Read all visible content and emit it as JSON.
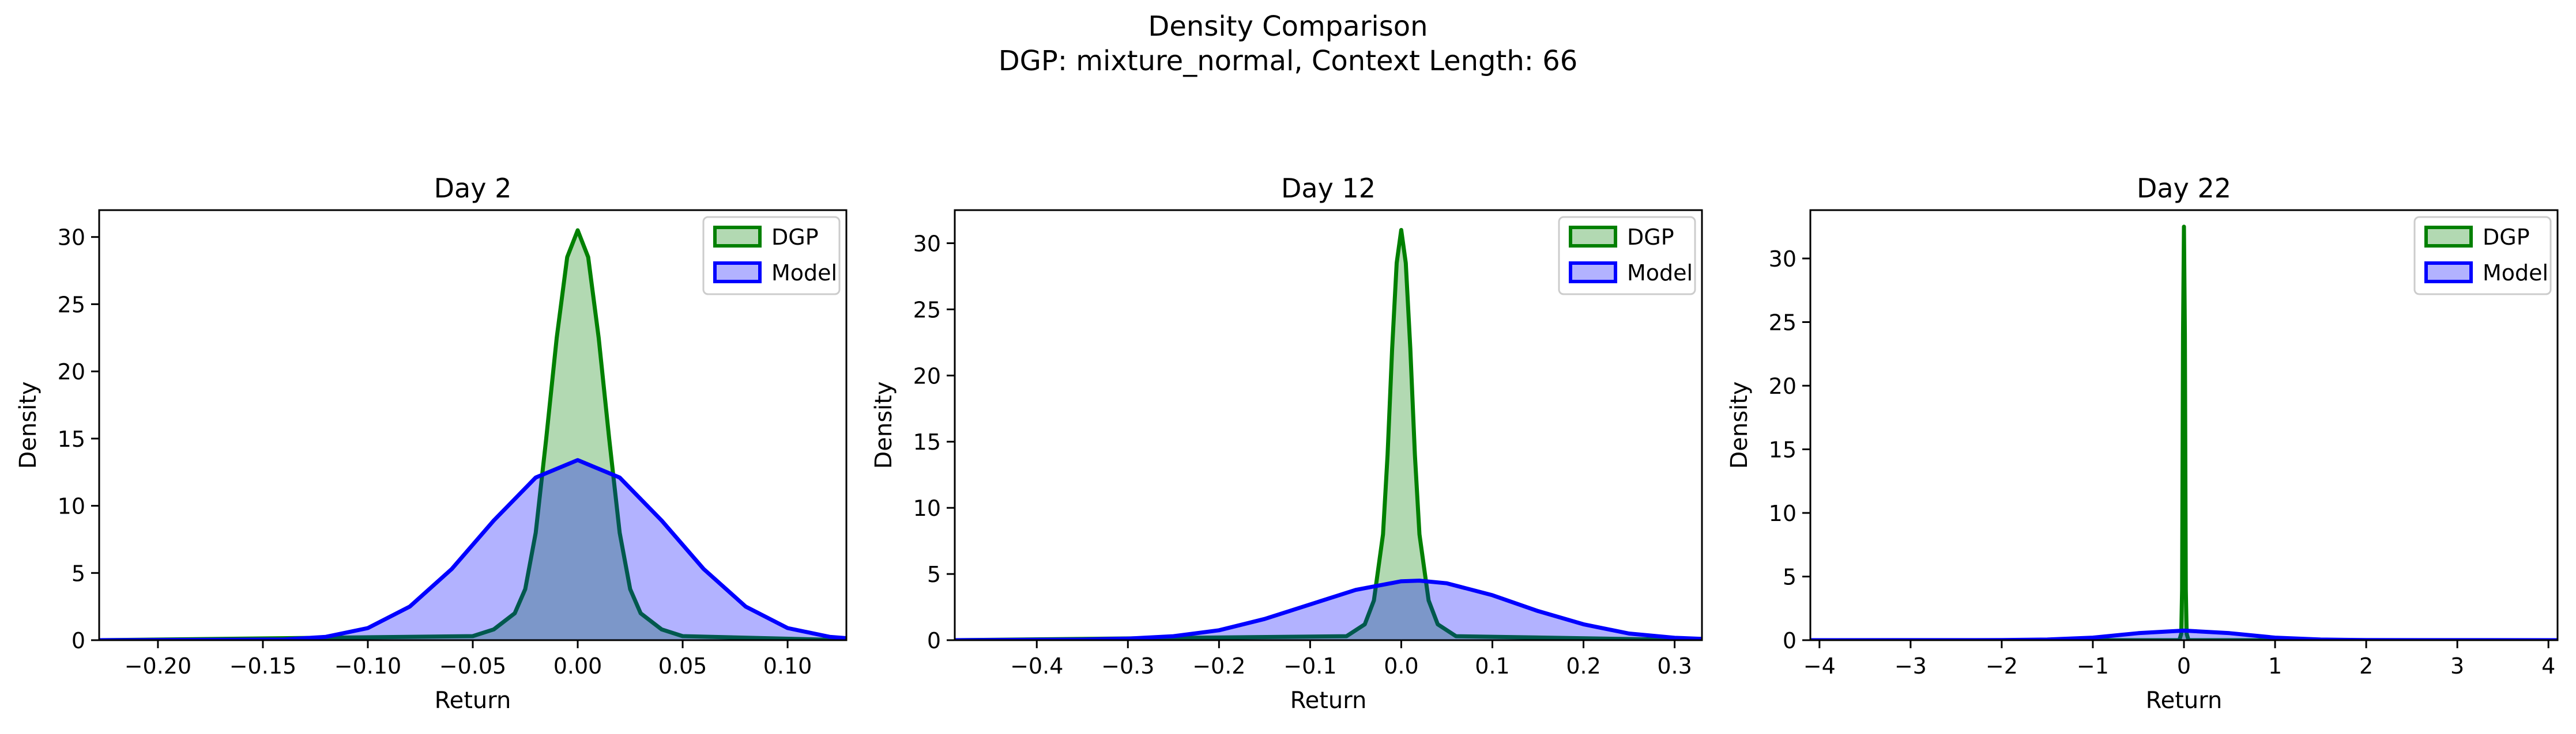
{
  "figure": {
    "title_line1": "Density Comparison",
    "title_line2": "DGP: mixture_normal, Context Length: 66"
  },
  "colors": {
    "dgp": "#008000",
    "model": "#0000ff",
    "dgp_fill": "rgba(0,128,0,0.3)",
    "model_fill": "rgba(0,0,255,0.3)"
  },
  "chart_data": [
    {
      "type": "area",
      "title": "Day 2",
      "xlabel": "Return",
      "ylabel": "Density",
      "xlim": [
        -0.228,
        0.128
      ],
      "ylim": [
        0,
        32
      ],
      "xticks": [
        -0.2,
        -0.15,
        -0.1,
        -0.05,
        0.0,
        0.05,
        0.1
      ],
      "xtick_labels": [
        "−0.20",
        "−0.15",
        "−0.10",
        "−0.05",
        "0.00",
        "0.05",
        "0.10"
      ],
      "yticks": [
        0,
        5,
        10,
        15,
        20,
        25,
        30
      ],
      "ytick_labels": [
        "0",
        "5",
        "10",
        "15",
        "20",
        "25",
        "30"
      ],
      "legend_position": "top-right",
      "series": [
        {
          "name": "DGP",
          "color": "#008000",
          "x": [
            -0.228,
            -0.05,
            -0.04,
            -0.03,
            -0.025,
            -0.02,
            -0.015,
            -0.01,
            -0.005,
            0.0,
            0.005,
            0.01,
            0.015,
            0.02,
            0.025,
            0.03,
            0.04,
            0.05,
            0.128
          ],
          "y": [
            0.0,
            0.3,
            0.8,
            2.0,
            3.8,
            8.0,
            15.0,
            22.5,
            28.5,
            30.5,
            28.5,
            22.5,
            15.0,
            8.0,
            3.8,
            2.0,
            0.8,
            0.3,
            0.0
          ]
        },
        {
          "name": "Model",
          "color": "#0000ff",
          "x": [
            -0.228,
            -0.14,
            -0.12,
            -0.1,
            -0.08,
            -0.06,
            -0.04,
            -0.02,
            0.0,
            0.02,
            0.04,
            0.06,
            0.08,
            0.1,
            0.12,
            0.128
          ],
          "y": [
            0.0,
            0.05,
            0.25,
            0.9,
            2.5,
            5.3,
            8.9,
            12.1,
            13.4,
            12.1,
            8.9,
            5.3,
            2.5,
            0.9,
            0.25,
            0.15
          ]
        }
      ]
    },
    {
      "type": "area",
      "title": "Day 12",
      "xlabel": "Return",
      "ylabel": "Density",
      "xlim": [
        -0.49,
        0.33
      ],
      "ylim": [
        0,
        32.5
      ],
      "xticks": [
        -0.4,
        -0.3,
        -0.2,
        -0.1,
        0.0,
        0.1,
        0.2,
        0.3
      ],
      "xtick_labels": [
        "−0.4",
        "−0.3",
        "−0.2",
        "−0.1",
        "0.0",
        "0.1",
        "0.2",
        "0.3"
      ],
      "yticks": [
        0,
        5,
        10,
        15,
        20,
        25,
        30
      ],
      "ytick_labels": [
        "0",
        "5",
        "10",
        "15",
        "20",
        "25",
        "30"
      ],
      "legend_position": "top-right",
      "series": [
        {
          "name": "DGP",
          "color": "#008000",
          "x": [
            -0.49,
            -0.06,
            -0.04,
            -0.03,
            -0.02,
            -0.015,
            -0.01,
            -0.005,
            0.0,
            0.005,
            0.01,
            0.015,
            0.02,
            0.03,
            0.04,
            0.06,
            0.33
          ],
          "y": [
            0.0,
            0.3,
            1.2,
            3.0,
            8.0,
            14.0,
            22.0,
            28.5,
            31.0,
            28.5,
            22.0,
            14.0,
            8.0,
            3.0,
            1.2,
            0.3,
            0.0
          ]
        },
        {
          "name": "Model",
          "color": "#0000ff",
          "x": [
            -0.49,
            -0.35,
            -0.3,
            -0.25,
            -0.2,
            -0.15,
            -0.1,
            -0.05,
            0.0,
            0.02,
            0.05,
            0.1,
            0.15,
            0.2,
            0.25,
            0.3,
            0.33
          ],
          "y": [
            0.0,
            0.05,
            0.12,
            0.3,
            0.75,
            1.6,
            2.7,
            3.8,
            4.45,
            4.5,
            4.3,
            3.4,
            2.2,
            1.2,
            0.5,
            0.18,
            0.1
          ]
        }
      ]
    },
    {
      "type": "area",
      "title": "Day 22",
      "xlabel": "Return",
      "ylabel": "Density",
      "xlim": [
        -4.1,
        4.1
      ],
      "ylim": [
        0,
        33.8
      ],
      "xticks": [
        -4,
        -3,
        -2,
        -1,
        0,
        1,
        2,
        3,
        4
      ],
      "xtick_labels": [
        "−4",
        "−3",
        "−2",
        "−1",
        "0",
        "1",
        "2",
        "3",
        "4"
      ],
      "yticks": [
        0,
        5,
        10,
        15,
        20,
        25,
        30
      ],
      "ytick_labels": [
        "0",
        "5",
        "10",
        "15",
        "20",
        "25",
        "30"
      ],
      "legend_position": "top-right",
      "series": [
        {
          "name": "DGP",
          "color": "#008000",
          "x": [
            -4.1,
            -0.05,
            -0.03,
            -0.02,
            -0.01,
            0.0,
            0.01,
            0.02,
            0.03,
            0.05,
            4.1
          ],
          "y": [
            0.0,
            0.0,
            0.5,
            4.0,
            24.0,
            32.5,
            24.0,
            4.0,
            0.5,
            0.0,
            0.0
          ]
        },
        {
          "name": "Model",
          "color": "#0000ff",
          "x": [
            -4.1,
            -2.0,
            -1.5,
            -1.0,
            -0.5,
            0.0,
            0.5,
            1.0,
            1.5,
            2.0,
            4.1
          ],
          "y": [
            0.0,
            0.01,
            0.05,
            0.2,
            0.55,
            0.75,
            0.55,
            0.2,
            0.05,
            0.01,
            0.0
          ]
        }
      ]
    }
  ]
}
